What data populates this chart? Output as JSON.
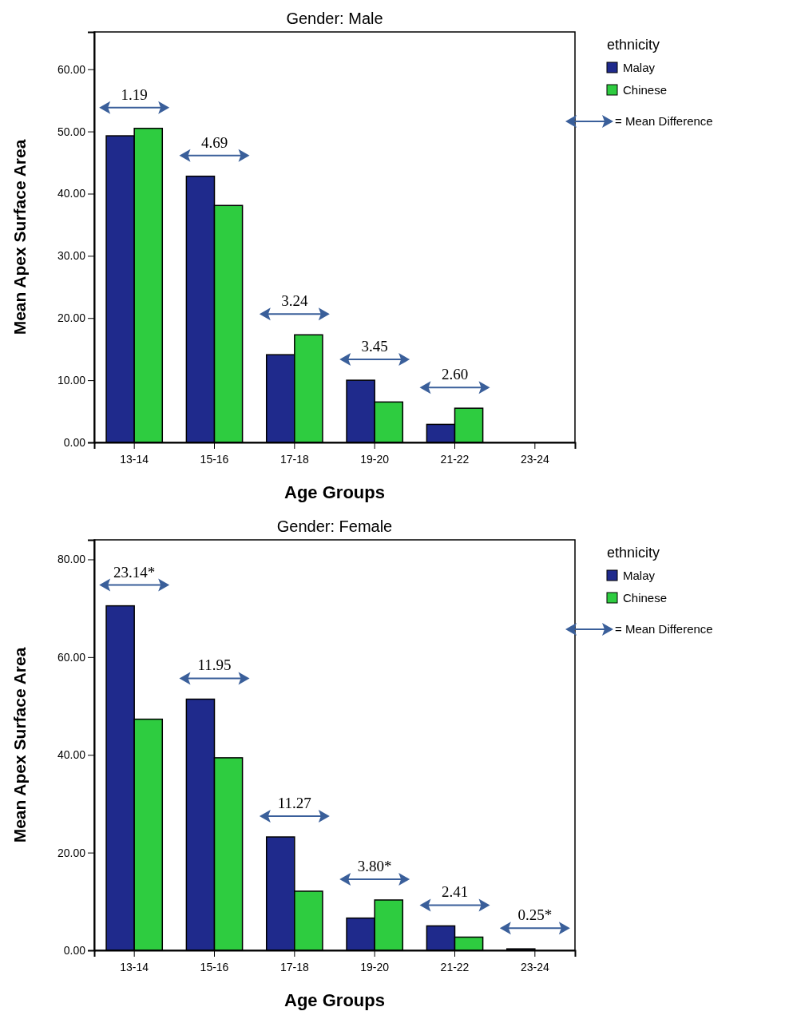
{
  "chart_data": [
    {
      "type": "bar",
      "title": "Gender: Male",
      "xlabel": "Age Groups",
      "ylabel": "Mean Apex Surface Area",
      "legend_title": "ethnicity",
      "legend": "right",
      "grid": false,
      "categories": [
        "13-14",
        "15-16",
        "17-18",
        "19-20",
        "21-22",
        "23-24"
      ],
      "series": [
        {
          "name": "Malay",
          "color": "#1f2a8c",
          "values": [
            49.3,
            42.8,
            14.1,
            10.0,
            2.9,
            null
          ]
        },
        {
          "name": "Chinese",
          "color": "#2ecc40",
          "values": [
            50.5,
            38.1,
            17.3,
            6.5,
            5.5,
            null
          ]
        }
      ],
      "ylim": [
        0,
        66
      ],
      "yticks": [
        {
          "value": 0,
          "label": "0.00"
        },
        {
          "value": 10,
          "label": "10.00"
        },
        {
          "value": 20,
          "label": "20.00"
        },
        {
          "value": 30,
          "label": "30.00"
        },
        {
          "value": 40,
          "label": "40.00"
        },
        {
          "value": 50,
          "label": "50.00"
        },
        {
          "value": 60,
          "label": "60.00"
        }
      ],
      "annotations": [
        "1.19",
        "4.69",
        "3.24",
        "3.45",
        "2.60",
        "= Mean Difference"
      ]
    },
    {
      "type": "bar",
      "title": "Gender: Female",
      "xlabel": "Age Groups",
      "ylabel": "Mean Apex Surface Area",
      "legend_title": "ethnicity",
      "legend": "right",
      "grid": false,
      "categories": [
        "13-14",
        "15-16",
        "17-18",
        "19-20",
        "21-22",
        "23-24"
      ],
      "series": [
        {
          "name": "Malay",
          "color": "#1f2a8c",
          "values": [
            70.5,
            51.4,
            23.2,
            6.6,
            5.0,
            0.3
          ]
        },
        {
          "name": "Chinese",
          "color": "#2ecc40",
          "values": [
            47.3,
            39.4,
            12.1,
            10.3,
            2.7,
            null
          ]
        }
      ],
      "ylim": [
        0,
        84
      ],
      "yticks": [
        {
          "value": 0,
          "label": "0.00"
        },
        {
          "value": 20,
          "label": "20.00"
        },
        {
          "value": 40,
          "label": "40.00"
        },
        {
          "value": 60,
          "label": "60.00"
        },
        {
          "value": 80,
          "label": "80.00"
        }
      ],
      "annotations": [
        "23.14*",
        "11.95",
        "11.27",
        "3.80*",
        "2.41",
        "0.25*",
        "= Mean Difference"
      ]
    }
  ]
}
